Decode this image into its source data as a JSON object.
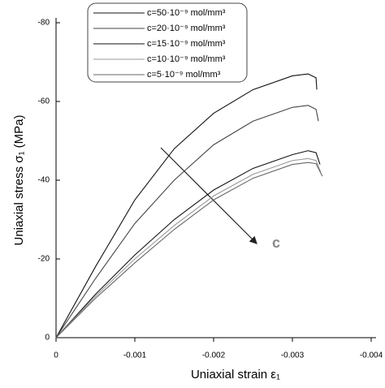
{
  "chart_data": {
    "type": "line",
    "xlabel": "Uniaxial strain ε₁",
    "ylabel": "Uniaxial stress σ₁ (MPa)",
    "xlim": [
      0,
      -0.004
    ],
    "xticks": [
      0,
      -0.001,
      -0.002,
      -0.003,
      -0.004
    ],
    "ylim": [
      0,
      -80
    ],
    "yticks": [
      0,
      -20,
      -40,
      -60,
      -80
    ],
    "grid": false,
    "legend": "top",
    "annotation": "c",
    "series": [
      {
        "name": "c=50·10⁻⁹ mol/mm³",
        "color": "#111111",
        "x": [
          0,
          -0.0005,
          -0.001,
          -0.0015,
          -0.002,
          -0.0025,
          -0.003,
          -0.0032,
          -0.0033,
          -0.00331
        ],
        "values": [
          0,
          -18,
          -35,
          -48,
          -57,
          -63,
          -66.5,
          -67,
          -66,
          -63
        ]
      },
      {
        "name": "c=20·10⁻⁹ mol/mm³",
        "color": "#444444",
        "x": [
          0,
          -0.0005,
          -0.001,
          -0.0015,
          -0.002,
          -0.0025,
          -0.003,
          -0.0032,
          -0.0033,
          -0.00333
        ],
        "values": [
          0,
          -15,
          -29,
          -40,
          -49,
          -55,
          -58.5,
          -59,
          -58,
          -55
        ]
      },
      {
        "name": "c=15·10⁻⁹ mol/mm³",
        "color": "#111111",
        "x": [
          0,
          -0.0005,
          -0.001,
          -0.0015,
          -0.002,
          -0.0025,
          -0.003,
          -0.0032,
          -0.0033,
          -0.00335
        ],
        "values": [
          0,
          -11,
          -21,
          -30,
          -37.5,
          -43,
          -46.5,
          -47.5,
          -47,
          -44
        ]
      },
      {
        "name": "c=10·10⁻⁹ mol/mm³",
        "color": "#999999",
        "x": [
          0,
          -0.0005,
          -0.001,
          -0.0015,
          -0.002,
          -0.0025,
          -0.003,
          -0.0032,
          -0.0033,
          -0.00336
        ],
        "values": [
          0,
          -10.5,
          -20,
          -28.5,
          -36,
          -41.5,
          -45,
          -45.5,
          -45,
          -42
        ]
      },
      {
        "name": "c=5·10⁻⁹ mol/mm³",
        "color": "#666666",
        "x": [
          0,
          -0.0005,
          -0.001,
          -0.0015,
          -0.002,
          -0.0025,
          -0.003,
          -0.0032,
          -0.0033,
          -0.00338
        ],
        "values": [
          0,
          -10,
          -19,
          -27.5,
          -35,
          -40.5,
          -44,
          -44.5,
          -44.2,
          -41
        ]
      }
    ]
  }
}
